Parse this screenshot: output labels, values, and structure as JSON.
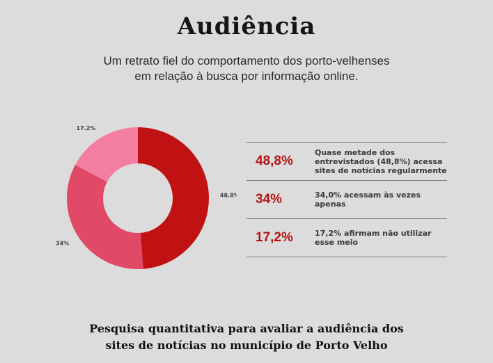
{
  "header": {
    "title": "Audiência",
    "subtitle_lines": [
      "Um retrato fiel do comportamento dos porto-velhenses",
      "em relação à busca por informação online."
    ]
  },
  "chart_data": {
    "type": "pie",
    "donut": true,
    "categories": [
      "48.8%",
      "34%",
      "17.2%"
    ],
    "values": [
      48.8,
      34,
      17.2
    ],
    "colors": [
      "#c01212",
      "#e14a66",
      "#f47ea2"
    ],
    "title": "",
    "legend": "none"
  },
  "stats": [
    {
      "value": "48,8%",
      "text": "Quase metade dos entrevistados (48,8%) acessa sites de notícias regularmente"
    },
    {
      "value": "34%",
      "text": "34,0% acessam às vezes apenas"
    },
    {
      "value": "17,2%",
      "text": "17,2% afirmam não utilizar esse meio"
    }
  ],
  "footer": {
    "lines": [
      "Pesquisa quantitativa para avaliar a audiência dos",
      "sites de notícias no município de Porto Velho"
    ]
  }
}
